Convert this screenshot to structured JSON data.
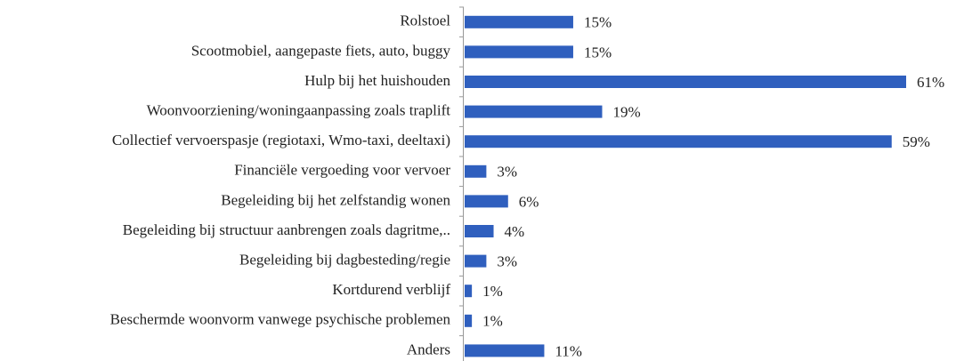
{
  "chart_data": {
    "type": "hbar",
    "color": "#2f5fbe",
    "categories": [
      "Rolstoel",
      "Scootmobiel, aangepaste fiets, auto, buggy",
      "Hulp bij het huishouden",
      "Woonvoorziening/woningaanpassing zoals traplift",
      "Collectief vervoerspasje (regiotaxi, Wmo-taxi, deeltaxi)",
      "Financiële vergoeding voor vervoer",
      "Begeleiding bij het zelfstandig wonen",
      "Begeleiding bij structuur aanbrengen zoals dagritme,..",
      "Begeleiding bij dagbesteding/regie",
      "Kortdurend verblijf",
      "Beschermde woonvorm vanwege psychische problemen",
      "Anders"
    ],
    "values": [
      15,
      15,
      61,
      19,
      59,
      3,
      6,
      4,
      3,
      1,
      1,
      11
    ],
    "value_labels": [
      "15%",
      "15%",
      "61%",
      "19%",
      "59%",
      "3%",
      "6%",
      "4%",
      "3%",
      "1%",
      "1%",
      "11%"
    ]
  }
}
